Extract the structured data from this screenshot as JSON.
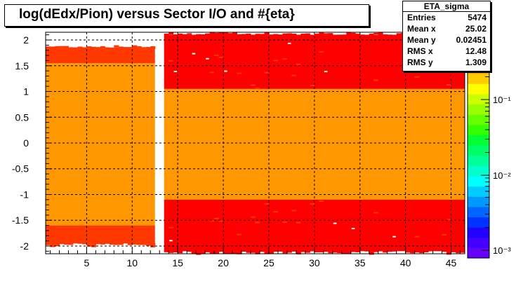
{
  "colors": {
    "orange": "#ff9800",
    "red_orange": "#ff3800",
    "red": "#ff0000",
    "white": "#ffffff",
    "black": "#000000"
  },
  "title": "log(dEdx/Pion) versus Sector I/O and #{eta}",
  "stats": {
    "name": "ETA_sigma",
    "rows": [
      {
        "key": "Entries",
        "value": "5474"
      },
      {
        "key": "Mean x",
        "value": "25.02"
      },
      {
        "key": "Mean y",
        "value": "0.02451"
      },
      {
        "key": "RMS x",
        "value": "12.48"
      },
      {
        "key": "RMS y",
        "value": "1.309"
      }
    ]
  },
  "palette_labels": [
    "10⁻¹",
    "10⁻²",
    "10⁻³"
  ],
  "chart_data": {
    "type": "heatmap",
    "title": "log(dEdx/Pion) versus Sector I/O and #{eta}",
    "xlabel": "",
    "ylabel": "",
    "xlim": [
      0.5,
      46.5
    ],
    "ylim": [
      -2.15,
      2.15
    ],
    "x_ticks": [
      5,
      10,
      15,
      20,
      25,
      30,
      35,
      40,
      45
    ],
    "y_ticks": [
      -2,
      -1.5,
      -1,
      -0.5,
      0,
      0.5,
      1,
      1.5,
      2
    ],
    "y_tick_labels": [
      "-2",
      "-1.5",
      "-1",
      "-0.5",
      "0",
      "0.5",
      "1",
      "1.5",
      "2"
    ],
    "grid": true,
    "color_scale": "log",
    "empty_sector": 13,
    "regions": [
      {
        "name": "inner-sectors-core",
        "x_range": [
          0.5,
          12.5
        ],
        "y_range": [
          -1.6,
          1.55
        ],
        "level": "orange"
      },
      {
        "name": "inner-sectors-top-band",
        "x_range": [
          0.5,
          12.5
        ],
        "y_range": [
          1.55,
          1.85
        ],
        "level": "red-orange"
      },
      {
        "name": "inner-sectors-bottom-band",
        "x_range": [
          0.5,
          12.5
        ],
        "y_range": [
          -1.95,
          -1.6
        ],
        "level": "red-orange"
      },
      {
        "name": "outer-sectors-core",
        "x_range": [
          13.5,
          46.5
        ],
        "y_range": [
          -1.1,
          1.05
        ],
        "level": "orange"
      },
      {
        "name": "outer-sectors-top-band",
        "x_range": [
          13.5,
          46.5
        ],
        "y_range": [
          1.05,
          2.1
        ],
        "level": "red"
      },
      {
        "name": "outer-sectors-bottom-band",
        "x_range": [
          13.5,
          46.5
        ],
        "y_range": [
          -2.1,
          -1.1
        ],
        "level": "red"
      }
    ]
  }
}
